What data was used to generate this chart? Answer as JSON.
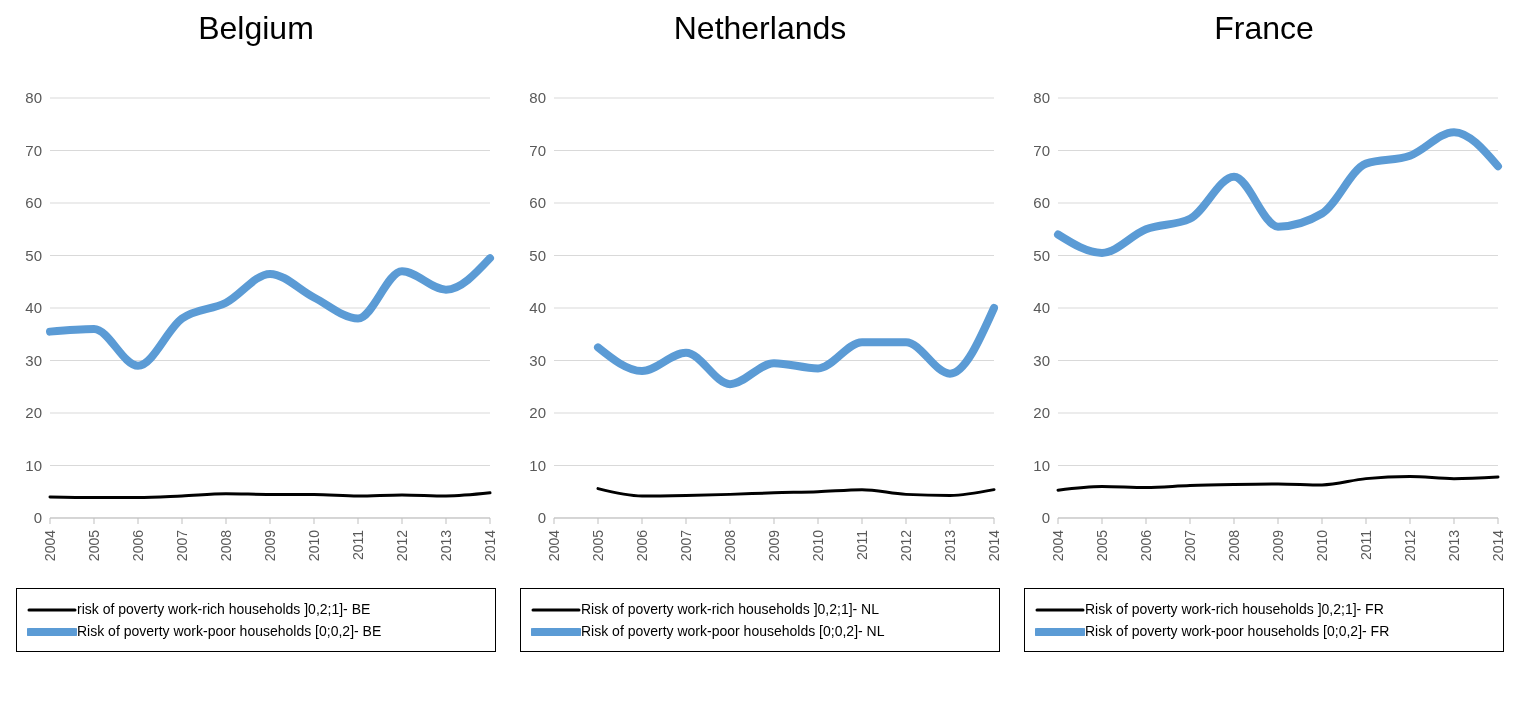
{
  "chart_data": [
    {
      "type": "line",
      "title": "Belgium",
      "categories": [
        "2004",
        "2005",
        "2006",
        "2007",
        "2008",
        "2009",
        "2010",
        "2011",
        "2012",
        "2013",
        "2014"
      ],
      "ylim": [
        0,
        80
      ],
      "yticks": [
        0,
        10,
        20,
        30,
        40,
        50,
        60,
        70,
        80
      ],
      "grid": "y",
      "legend": "bottom",
      "series": [
        {
          "name": "risk of poverty work-rich households ]0,2;1]- BE",
          "color": "#000000",
          "values": [
            4,
            3.9,
            3.9,
            4.2,
            4.6,
            4.5,
            4.5,
            4.2,
            4.4,
            4.2,
            4.8
          ]
        },
        {
          "name": "Risk of poverty work-poor households [0;0,2]- BE",
          "color": "#5b9bd5",
          "values": [
            35.5,
            36,
            29,
            38,
            41,
            46.5,
            42,
            38,
            47,
            43.5,
            49.5
          ]
        }
      ]
    },
    {
      "type": "line",
      "title": "Netherlands",
      "categories": [
        "2004",
        "2005",
        "2006",
        "2007",
        "2008",
        "2009",
        "2010",
        "2011",
        "2012",
        "2013",
        "2014"
      ],
      "ylim": [
        0,
        80
      ],
      "yticks": [
        0,
        10,
        20,
        30,
        40,
        50,
        60,
        70,
        80
      ],
      "grid": "y",
      "legend": "bottom",
      "series": [
        {
          "name": "Risk of poverty work-rich households ]0,2;1]- NL",
          "color": "#000000",
          "values": [
            null,
            5.6,
            4.2,
            4.3,
            4.5,
            4.8,
            5,
            5.4,
            4.5,
            4.3,
            5.4
          ]
        },
        {
          "name": "Risk of poverty work-poor households [0;0,2]- NL",
          "color": "#5b9bd5",
          "values": [
            null,
            32.5,
            28,
            31.5,
            25.5,
            29.5,
            28.5,
            33.5,
            33.5,
            27.5,
            40
          ]
        }
      ]
    },
    {
      "type": "line",
      "title": "France",
      "categories": [
        "2004",
        "2005",
        "2006",
        "2007",
        "2008",
        "2009",
        "2010",
        "2011",
        "2012",
        "2013",
        "2014"
      ],
      "ylim": [
        0,
        80
      ],
      "yticks": [
        0,
        10,
        20,
        30,
        40,
        50,
        60,
        70,
        80
      ],
      "grid": "y",
      "legend": "bottom",
      "series": [
        {
          "name": "Risk of poverty work-rich households ]0,2;1]- FR",
          "color": "#000000",
          "values": [
            5.3,
            6,
            5.8,
            6.2,
            6.4,
            6.5,
            6.3,
            7.5,
            7.9,
            7.5,
            7.8
          ]
        },
        {
          "name": "Risk of poverty work-poor households [0;0,2]- FR",
          "color": "#5b9bd5",
          "values": [
            54,
            50.5,
            55,
            57,
            65,
            55.5,
            58,
            67.5,
            69,
            73.5,
            67
          ]
        }
      ]
    }
  ]
}
